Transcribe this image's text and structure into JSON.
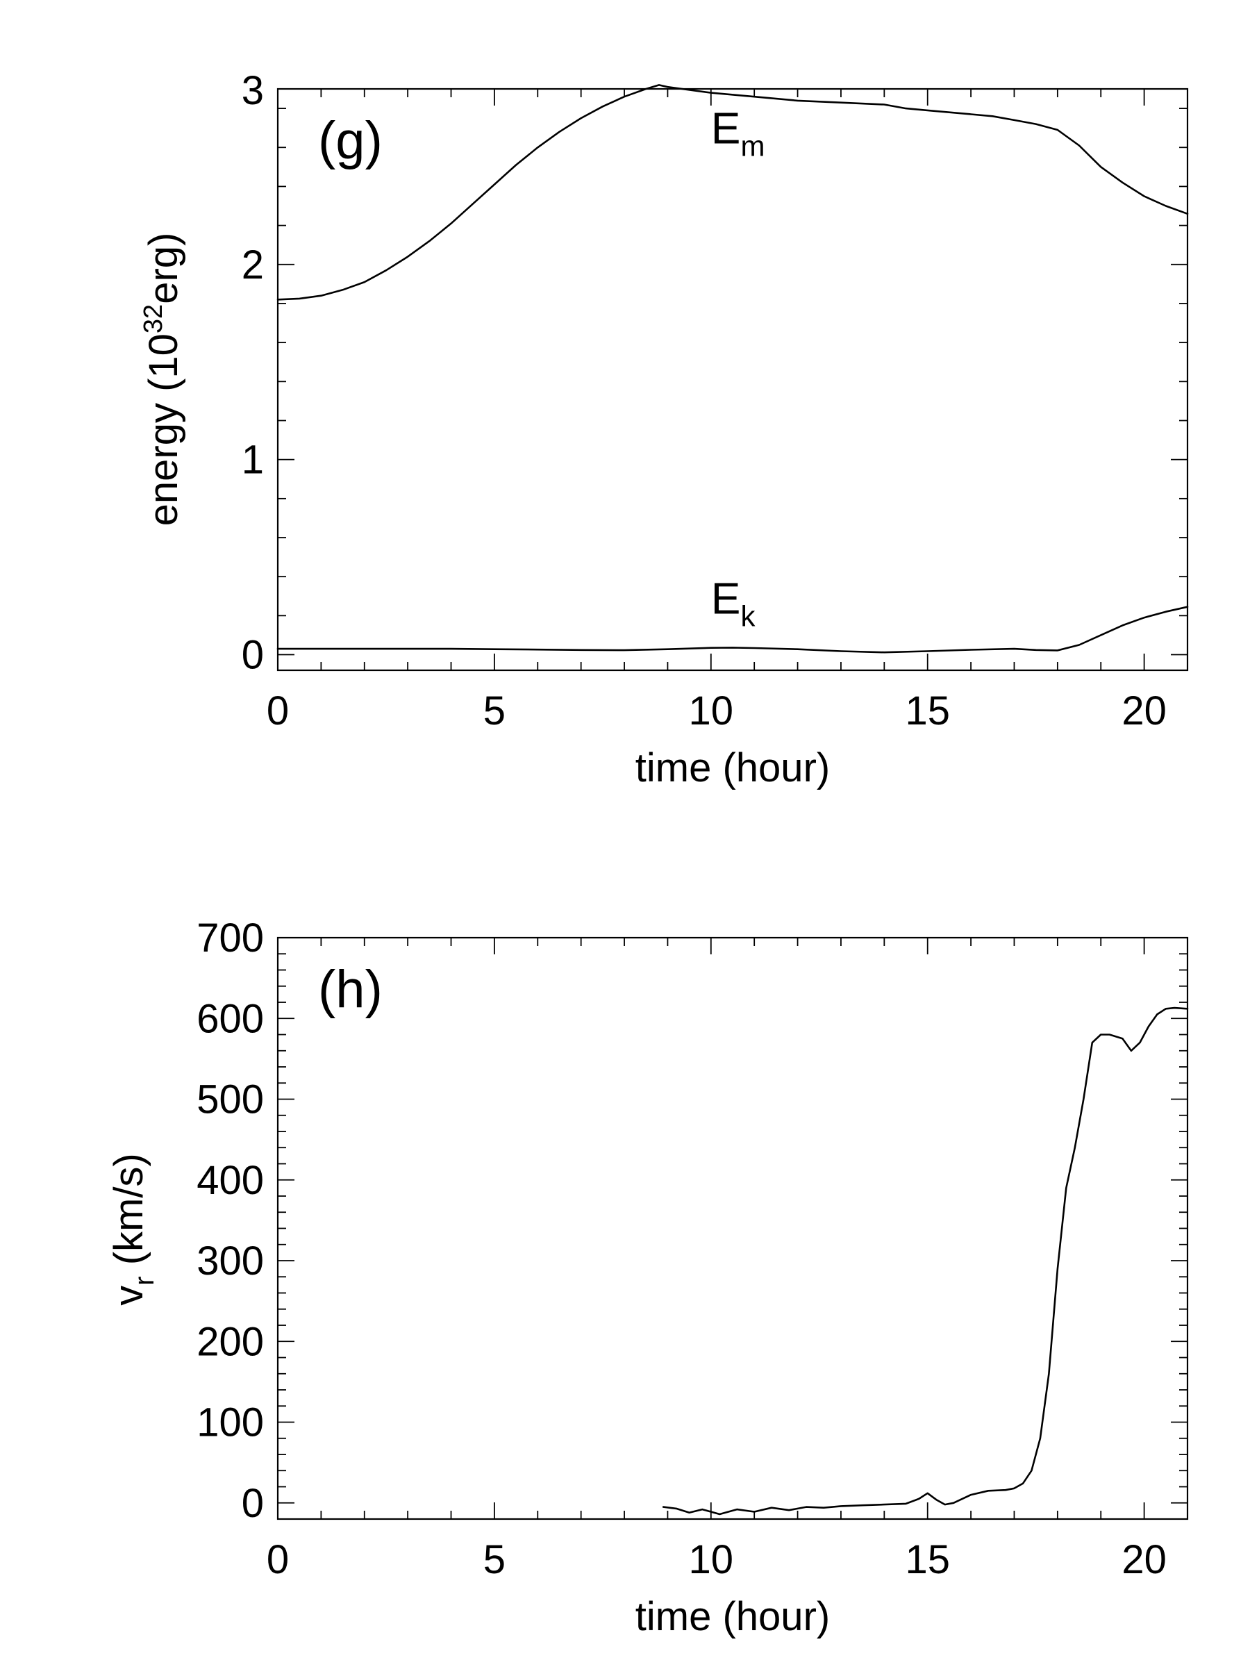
{
  "chart_data": [
    {
      "type": "line",
      "panel_label": "(g)",
      "xlabel": "time (hour)",
      "ylabel": {
        "main": "energy (10",
        "sup": "32",
        "tail": "erg)"
      },
      "xlim": [
        0,
        21
      ],
      "ylim": [
        -0.08,
        2.9
      ],
      "xticks": [
        0,
        5,
        10,
        15,
        20
      ],
      "yticks": [
        0,
        1,
        2
      ],
      "ytick_labels": [
        "0",
        "1",
        "2"
      ],
      "ytop_label": "3",
      "series": [
        {
          "name": "E_m",
          "label": {
            "base": "E",
            "sub": "m"
          },
          "label_at": [
            10.0,
            2.62
          ],
          "x": [
            0,
            0.5,
            1,
            1.5,
            2,
            2.5,
            3,
            3.5,
            4,
            4.5,
            5,
            5.5,
            6,
            6.5,
            7,
            7.5,
            8,
            8.5,
            8.8,
            9,
            10,
            11,
            12,
            13,
            14,
            14.5,
            15,
            15.5,
            16,
            16.5,
            17,
            17.5,
            18,
            18.5,
            19,
            19.5,
            20,
            20.5,
            21
          ],
          "y": [
            1.82,
            1.825,
            1.84,
            1.87,
            1.91,
            1.97,
            2.04,
            2.12,
            2.21,
            2.31,
            2.41,
            2.51,
            2.6,
            2.68,
            2.75,
            2.81,
            2.86,
            2.9,
            2.92,
            2.91,
            2.88,
            2.86,
            2.84,
            2.83,
            2.82,
            2.8,
            2.79,
            2.78,
            2.77,
            2.76,
            2.74,
            2.72,
            2.69,
            2.61,
            2.5,
            2.42,
            2.35,
            2.3,
            2.26
          ]
        },
        {
          "name": "E_k",
          "label": {
            "base": "E",
            "sub": "k"
          },
          "label_at": [
            10.0,
            0.21
          ],
          "x": [
            0,
            1,
            2,
            3,
            4,
            5,
            6,
            7,
            8,
            9,
            10,
            10.5,
            11,
            12,
            13,
            14,
            15,
            16,
            17,
            17.5,
            18,
            18.5,
            19,
            19.5,
            20,
            20.5,
            21
          ],
          "y": [
            0.03,
            0.03,
            0.03,
            0.03,
            0.03,
            0.028,
            0.026,
            0.024,
            0.023,
            0.028,
            0.035,
            0.036,
            0.034,
            0.028,
            0.018,
            0.012,
            0.018,
            0.025,
            0.03,
            0.024,
            0.022,
            0.05,
            0.1,
            0.15,
            0.19,
            0.22,
            0.245
          ]
        }
      ]
    },
    {
      "type": "line",
      "panel_label": "(h)",
      "xlabel": "time (hour)",
      "ylabel": {
        "main": "v",
        "sub": "r",
        "tail": " (km/s)"
      },
      "xlim": [
        0,
        21
      ],
      "ylim": [
        -20,
        700
      ],
      "xticks": [
        0,
        5,
        10,
        15,
        20
      ],
      "yticks": [
        0,
        100,
        200,
        300,
        400,
        500,
        600,
        700
      ],
      "ytick_labels": [
        "0",
        "100",
        "200",
        "300",
        "400",
        "500",
        "600",
        "700"
      ],
      "series": [
        {
          "name": "v_r",
          "x": [
            8.9,
            9.2,
            9.5,
            9.8,
            10.2,
            10.6,
            11.0,
            11.4,
            11.8,
            12.2,
            12.6,
            13.0,
            13.5,
            14.0,
            14.5,
            14.8,
            15.0,
            15.2,
            15.4,
            15.6,
            16.0,
            16.4,
            16.8,
            17.0,
            17.2,
            17.4,
            17.6,
            17.8,
            18.0,
            18.2,
            18.4,
            18.6,
            18.8,
            19.0,
            19.2,
            19.5,
            19.7,
            19.9,
            20.1,
            20.3,
            20.5,
            20.7,
            21.0
          ],
          "y": [
            -5,
            -7,
            -12,
            -8,
            -14,
            -8,
            -11,
            -6,
            -9,
            -5,
            -6,
            -4,
            -3,
            -2,
            -1,
            5,
            12,
            4,
            -2,
            0,
            10,
            15,
            16,
            18,
            24,
            40,
            80,
            160,
            290,
            390,
            440,
            500,
            570,
            580,
            580,
            575,
            560,
            570,
            590,
            605,
            612,
            613,
            612
          ]
        }
      ]
    }
  ]
}
